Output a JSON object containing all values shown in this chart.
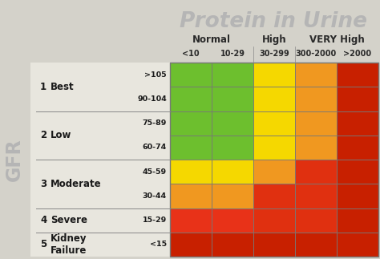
{
  "title": "Protein in Urine",
  "title_color": "#b5b5b5",
  "background_color": "#d4d2ca",
  "gfr_label": "GFR",
  "col_headers_level2": [
    "<10",
    "10-29",
    "30-299",
    "300-2000",
    ">2000"
  ],
  "num_rows": 8,
  "num_cols": 5,
  "grid_colors": [
    [
      "#6dbf2e",
      "#6dbf2e",
      "#f5d800",
      "#f09820",
      "#c82000"
    ],
    [
      "#6dbf2e",
      "#6dbf2e",
      "#f5d800",
      "#f09820",
      "#c82000"
    ],
    [
      "#6dbf2e",
      "#6dbf2e",
      "#f5d800",
      "#f09820",
      "#c82000"
    ],
    [
      "#6dbf2e",
      "#6dbf2e",
      "#f5d800",
      "#f09820",
      "#c82000"
    ],
    [
      "#f5d800",
      "#f5d800",
      "#f09820",
      "#e03010",
      "#c82000"
    ],
    [
      "#f09820",
      "#f09820",
      "#e03010",
      "#e03010",
      "#c82000"
    ],
    [
      "#e83218",
      "#e83218",
      "#e03010",
      "#e03010",
      "#c82000"
    ],
    [
      "#c82000",
      "#c82000",
      "#c82000",
      "#c82000",
      "#c82000"
    ]
  ],
  "row_group_boundaries": [
    0,
    2,
    4,
    6,
    7,
    8
  ],
  "group_numbers": [
    "1",
    "2",
    "3",
    "4",
    "5"
  ],
  "group_names": [
    "Best",
    "Low",
    "Moderate",
    "Severe",
    "Kidney\nFailure"
  ],
  "group_ranges": [
    ">105",
    "90-104",
    "75-89",
    "60-74",
    "45-59",
    "30-44",
    "15-29",
    "<15"
  ],
  "figsize": [
    4.74,
    3.23
  ],
  "dpi": 100
}
